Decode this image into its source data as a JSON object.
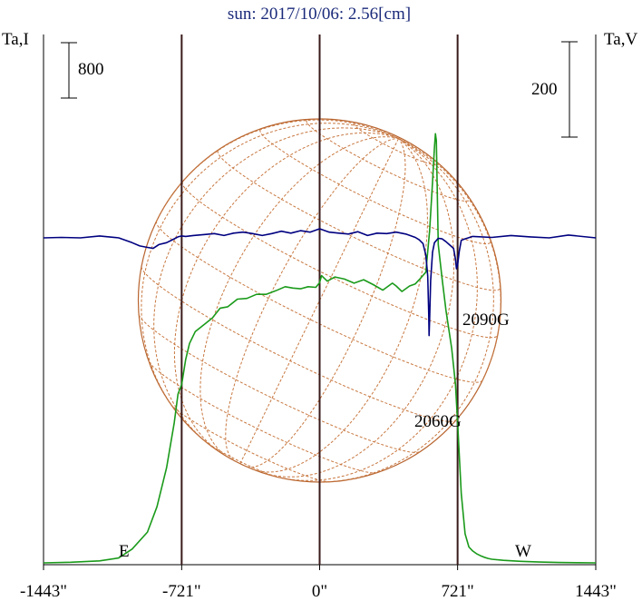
{
  "chart_data": {
    "type": "line",
    "title": "sun: 2017/10/06: 2.56[cm]",
    "ylabel_left": "Ta,I",
    "ylabel_right": "Ta,V",
    "xlabel": "",
    "x_ticks": [
      {
        "value": -1443,
        "label": "-1443\""
      },
      {
        "value": -721,
        "label": "-721\""
      },
      {
        "value": 0,
        "label": "0\""
      },
      {
        "value": 721,
        "label": "721\""
      },
      {
        "value": 1443,
        "label": "1443\""
      }
    ],
    "xlim": [
      -1443,
      1443
    ],
    "scale_bars": [
      {
        "label": "800",
        "series": "I"
      },
      {
        "label": "200",
        "series": "V"
      }
    ],
    "limb_labels": [
      {
        "label": "E",
        "x": -721
      },
      {
        "label": "W",
        "x": 721
      }
    ],
    "vertical_lines_x": [
      -721,
      0,
      721
    ],
    "annotations": [
      {
        "label": "2090G",
        "x": 721
      },
      {
        "label": "2060G",
        "x": 572
      }
    ],
    "grid": "heliographic",
    "series": [
      {
        "id": "I",
        "color": "#1a9a1a",
        "x": [
          -1443,
          -1300,
          -1150,
          -1050,
          -980,
          -900,
          -850,
          -800,
          -760,
          -740,
          -721,
          -700,
          -680,
          -650,
          -600,
          -560,
          -520,
          -480,
          -430,
          -380,
          -330,
          -280,
          -230,
          -180,
          -140,
          -100,
          -60,
          -20,
          0,
          10,
          40,
          80,
          130,
          180,
          230,
          280,
          330,
          380,
          400,
          430,
          470,
          500,
          530,
          555,
          575,
          590,
          600,
          605,
          610,
          620,
          640,
          660,
          690,
          710,
          721,
          740,
          760,
          780,
          800,
          820,
          840,
          860,
          880,
          900,
          960,
          1050,
          1150,
          1250,
          1350,
          1443
        ],
        "values": [
          0,
          9,
          29,
          71,
          200,
          445,
          810,
          1375,
          2020,
          2440,
          2580,
          2940,
          3170,
          3340,
          3450,
          3540,
          3680,
          3700,
          3810,
          3820,
          3880,
          3880,
          3930,
          3990,
          3970,
          3960,
          3990,
          3980,
          4050,
          4150,
          4070,
          4130,
          4100,
          4040,
          4090,
          4020,
          3940,
          4040,
          4000,
          3920,
          4000,
          4030,
          4120,
          4200,
          4800,
          5500,
          6000,
          6200,
          6100,
          4600,
          4100,
          3650,
          3100,
          2580,
          2040,
          1000,
          420,
          230,
          172,
          133,
          103,
          81,
          64,
          53,
          37,
          22,
          12,
          5,
          2,
          0
        ]
      },
      {
        "id": "V",
        "color": "#000080",
        "x": [
          -1443,
          -1350,
          -1250,
          -1150,
          -1050,
          -980,
          -940,
          -900,
          -870,
          -840,
          -800,
          -760,
          -740,
          -721,
          -700,
          -660,
          -600,
          -550,
          -500,
          -450,
          -400,
          -350,
          -300,
          -250,
          -200,
          -150,
          -100,
          -50,
          0,
          50,
          100,
          150,
          200,
          250,
          300,
          350,
          400,
          450,
          500,
          520,
          540,
          555,
          565,
          570,
          572,
          575,
          580,
          590,
          600,
          620,
          640,
          660,
          680,
          700,
          710,
          715,
          721,
          730,
          740,
          760,
          800,
          900,
          1000,
          1100,
          1200,
          1300,
          1443
        ],
        "values": [
          0,
          1,
          0,
          4,
          0,
          -10,
          -17,
          -20,
          -22,
          -14,
          -10,
          -2,
          2,
          4,
          3,
          5,
          7,
          9,
          5,
          10,
          12,
          9,
          5,
          9,
          14,
          10,
          15,
          12,
          19,
          12,
          10,
          8,
          13,
          5,
          10,
          9,
          12,
          8,
          1,
          -4,
          -12,
          -36,
          -80,
          -160,
          -205,
          -170,
          -90,
          -30,
          -10,
          -1,
          -2,
          -8,
          -15,
          -22,
          -45,
          -65,
          -57,
          -28,
          -5,
          -2,
          3,
          1,
          5,
          2,
          0,
          6,
          0
        ]
      }
    ]
  }
}
